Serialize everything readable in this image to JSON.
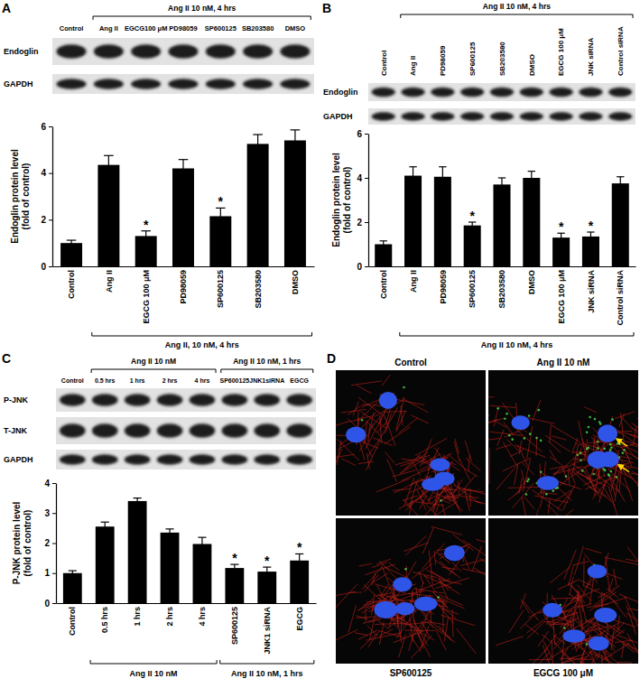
{
  "chart_data": [
    {
      "type": "bar",
      "title": "A",
      "y_label": [
        "Endoglin protein level",
        "(fold of control)"
      ],
      "categories": [
        "Control",
        "Ang II",
        "EGCG 100 μM",
        "PD98059",
        "SP600125",
        "SB203580",
        "DMSO"
      ],
      "values": [
        1.0,
        4.35,
        1.3,
        4.2,
        2.15,
        5.25,
        5.4
      ],
      "errors": [
        0.12,
        0.4,
        0.22,
        0.38,
        0.35,
        0.4,
        0.45
      ],
      "significance": [
        null,
        null,
        "*",
        null,
        "*",
        null,
        null
      ],
      "groups": [
        {
          "label": "Ang II, 10 nM, 4 hrs",
          "from": 1,
          "to": 6
        }
      ],
      "color": "#000000",
      "ylim": [
        0,
        6
      ],
      "yticks": [
        0,
        2,
        4,
        6
      ],
      "blot": {
        "groups": [
          {
            "label": "Ang II 10 nM, 4 hrs",
            "from": 1,
            "to": 6
          }
        ],
        "lanes": [
          "Control",
          "Ang II",
          "EGCG100 μM",
          "PD98059",
          "SP600125",
          "SB203580",
          "DMSO"
        ],
        "rows": [
          "Endoglin",
          "GAPDH"
        ]
      }
    },
    {
      "type": "bar",
      "title": "B",
      "y_label": [
        "Endoglin protein level",
        "(fold of control)"
      ],
      "categories": [
        "Control",
        "Ang II",
        "PD98059",
        "SP600125",
        "SB203580",
        "DMSO",
        "EGCG 100 μM",
        "JNK siRNA",
        "Control siRNA"
      ],
      "values": [
        1.0,
        4.1,
        4.05,
        1.85,
        3.7,
        4.0,
        1.3,
        1.35,
        3.75
      ],
      "errors": [
        0.15,
        0.4,
        0.45,
        0.15,
        0.3,
        0.3,
        0.2,
        0.2,
        0.3
      ],
      "significance": [
        null,
        null,
        null,
        "*",
        null,
        null,
        "*",
        "*",
        null
      ],
      "groups": [
        {
          "label": "Ang II 10 nM, 4 hrs",
          "from": 1,
          "to": 8
        }
      ],
      "color": "#000000",
      "ylim": [
        0,
        6
      ],
      "yticks": [
        0,
        2,
        4,
        6
      ],
      "blot": {
        "groups": [
          {
            "label": "Ang II 10 nM, 4 hrs",
            "from": 1,
            "to": 8
          }
        ],
        "lanes": [
          "Control",
          "Ang II",
          "PD98059",
          "SP600125",
          "SB203580",
          "DMSO",
          "EGCG 100 μM",
          "JNK siRNA",
          "Control siRNA"
        ],
        "rows": [
          "Endoglin",
          "GAPDH"
        ]
      }
    },
    {
      "type": "bar",
      "title": "C",
      "y_label": [
        "P-JNK protein level",
        "(fold of control)"
      ],
      "categories": [
        "Control",
        "0.5 hrs",
        "1 hrs",
        "2 hrs",
        "4 hrs",
        "SP600125",
        "JNK1 siRNA",
        "EGCG"
      ],
      "values": [
        1.0,
        2.55,
        3.4,
        2.35,
        1.97,
        1.17,
        1.05,
        1.42
      ],
      "errors": [
        0.08,
        0.15,
        0.1,
        0.12,
        0.22,
        0.12,
        0.15,
        0.22
      ],
      "significance": [
        null,
        null,
        null,
        null,
        null,
        "*",
        "*",
        "*"
      ],
      "groups": [
        {
          "label": "Ang II 10 nM",
          "from": 1,
          "to": 4
        },
        {
          "label": "Ang II 10 nM, 1 hrs",
          "from": 5,
          "to": 7
        }
      ],
      "color": "#000000",
      "ylim": [
        0,
        4
      ],
      "yticks": [
        0,
        1,
        2,
        3,
        4
      ],
      "blot": {
        "groups": [
          {
            "label": "Ang II 10 nM",
            "from": 1,
            "to": 4
          },
          {
            "label": "Ang II 10 nM, 1 hrs",
            "from": 5,
            "to": 7
          }
        ],
        "lanes": [
          "Control",
          "0.5 hrs",
          "1 hrs",
          "2 hrs",
          "4 hrs",
          "SP600125",
          "JNK1siRNA",
          "EGCG"
        ],
        "rows": [
          "P-JNK",
          "T-JNK",
          "GAPDH"
        ]
      }
    }
  ],
  "micrographs": {
    "title": "D",
    "top": [
      "Control",
      "Ang II 10 nM"
    ],
    "bottom": [
      "SP600125",
      "EGCG 100 μM"
    ]
  }
}
